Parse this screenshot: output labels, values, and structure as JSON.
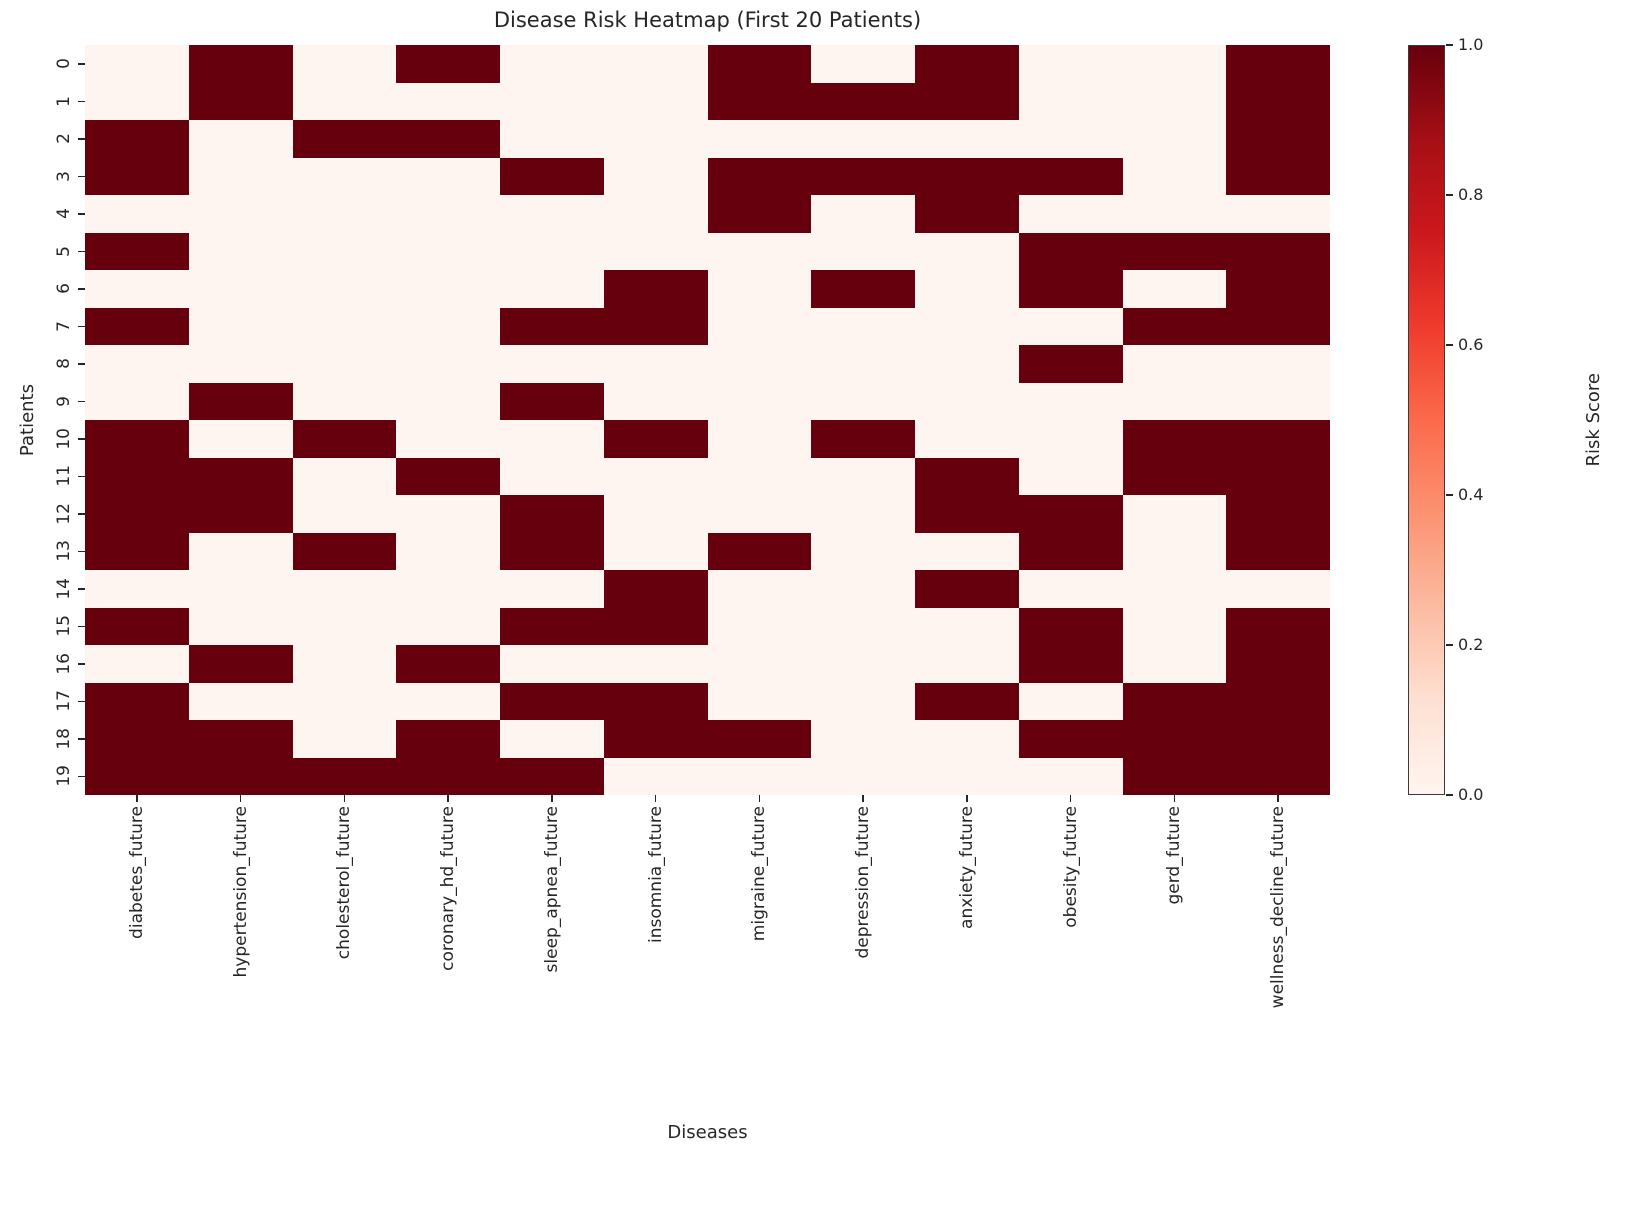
{
  "chart_data": {
    "type": "heatmap",
    "title": "Disease Risk Heatmap (First 20 Patients)",
    "xlabel": "Diseases",
    "ylabel": "Patients",
    "grid": false,
    "legend_position": "right",
    "columns": [
      "diabetes_future",
      "hypertension_future",
      "cholesterol_future",
      "coronary_hd_future",
      "sleep_apnea_future",
      "insomnia_future",
      "migraine_future",
      "depression_future",
      "anxiety_future",
      "obesity_future",
      "gerd_future",
      "wellness_decline_future"
    ],
    "rows": [
      "0",
      "1",
      "2",
      "3",
      "4",
      "5",
      "6",
      "7",
      "8",
      "9",
      "10",
      "11",
      "12",
      "13",
      "14",
      "15",
      "16",
      "17",
      "18",
      "19"
    ],
    "matrix": [
      [
        0,
        1,
        0,
        1,
        0,
        0,
        1,
        0,
        1,
        0,
        0,
        1
      ],
      [
        0,
        1,
        0,
        0,
        0,
        0,
        1,
        1,
        1,
        0,
        0,
        1
      ],
      [
        1,
        0,
        1,
        1,
        0,
        0,
        0,
        0,
        0,
        0,
        0,
        1
      ],
      [
        1,
        0,
        0,
        0,
        1,
        0,
        1,
        1,
        1,
        1,
        0,
        1
      ],
      [
        0,
        0,
        0,
        0,
        0,
        0,
        1,
        0,
        1,
        0,
        0,
        0
      ],
      [
        1,
        0,
        0,
        0,
        0,
        0,
        0,
        0,
        0,
        1,
        1,
        1
      ],
      [
        0,
        0,
        0,
        0,
        0,
        1,
        0,
        1,
        0,
        1,
        0,
        1
      ],
      [
        1,
        0,
        0,
        0,
        1,
        1,
        0,
        0,
        0,
        0,
        1,
        1
      ],
      [
        0,
        0,
        0,
        0,
        0,
        0,
        0,
        0,
        0,
        1,
        0,
        0
      ],
      [
        0,
        1,
        0,
        0,
        1,
        0,
        0,
        0,
        0,
        0,
        0,
        0
      ],
      [
        1,
        0,
        1,
        0,
        0,
        1,
        0,
        1,
        0,
        0,
        1,
        1
      ],
      [
        1,
        1,
        0,
        1,
        0,
        0,
        0,
        0,
        1,
        0,
        1,
        1
      ],
      [
        1,
        1,
        0,
        0,
        1,
        0,
        0,
        0,
        1,
        1,
        0,
        1
      ],
      [
        1,
        0,
        1,
        0,
        1,
        0,
        1,
        0,
        0,
        1,
        0,
        1
      ],
      [
        0,
        0,
        0,
        0,
        0,
        1,
        0,
        0,
        1,
        0,
        0,
        0
      ],
      [
        1,
        0,
        0,
        0,
        1,
        1,
        0,
        0,
        0,
        1,
        0,
        1
      ],
      [
        0,
        1,
        0,
        1,
        0,
        0,
        0,
        0,
        0,
        1,
        0,
        1
      ],
      [
        1,
        0,
        0,
        0,
        1,
        1,
        0,
        0,
        1,
        0,
        1,
        1
      ],
      [
        1,
        1,
        0,
        1,
        0,
        1,
        1,
        0,
        0,
        1,
        1,
        1
      ],
      [
        1,
        1,
        1,
        1,
        1,
        0,
        0,
        0,
        0,
        0,
        1,
        1
      ]
    ],
    "value_colors": {
      "high": "#67000d",
      "low": "#fff5f0"
    },
    "colorbar": {
      "label": "Risk Score",
      "min": 0.0,
      "max": 1.0,
      "ticks": [
        {
          "label": "1.0",
          "value": 1.0
        },
        {
          "label": "0.8",
          "value": 0.8
        },
        {
          "label": "0.6",
          "value": 0.6
        },
        {
          "label": "0.4",
          "value": 0.4
        },
        {
          "label": "0.2",
          "value": 0.2
        },
        {
          "label": "0.0",
          "value": 0.0
        }
      ],
      "gradient_stops": [
        "#fff5f0",
        "#fee0d2",
        "#fcbba1",
        "#fc9272",
        "#fb6a4a",
        "#ef3b2c",
        "#cb181d",
        "#a50f15",
        "#67000d"
      ]
    }
  }
}
